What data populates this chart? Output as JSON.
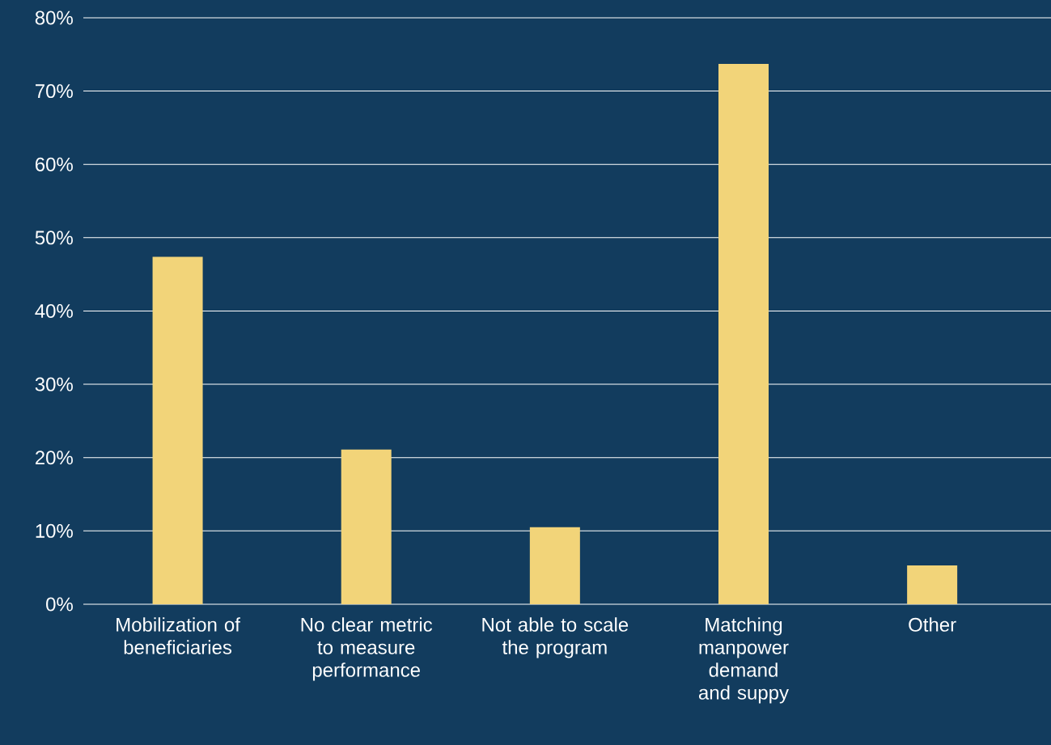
{
  "chart_data": {
    "type": "bar",
    "categories": [
      "Mobilization of beneficiaries",
      "No clear metric to measure performance",
      "Not able to scale the program",
      "Matching manpower demand and suppy",
      "Other"
    ],
    "values": [
      47.4,
      21.1,
      10.5,
      73.7,
      5.3
    ],
    "color": "#f2d479",
    "ylim": [
      0,
      80
    ],
    "yticks": [
      {
        "value": 0,
        "label": "0%"
      },
      {
        "value": 10,
        "label": "10%"
      },
      {
        "value": 20,
        "label": "20%"
      },
      {
        "value": 30,
        "label": "30%"
      },
      {
        "value": 40,
        "label": "40%"
      },
      {
        "value": 50,
        "label": "50%"
      },
      {
        "value": 60,
        "label": "60%"
      },
      {
        "value": 70,
        "label": "70%"
      },
      {
        "value": 80,
        "label": "80%"
      }
    ],
    "grid": "y"
  }
}
